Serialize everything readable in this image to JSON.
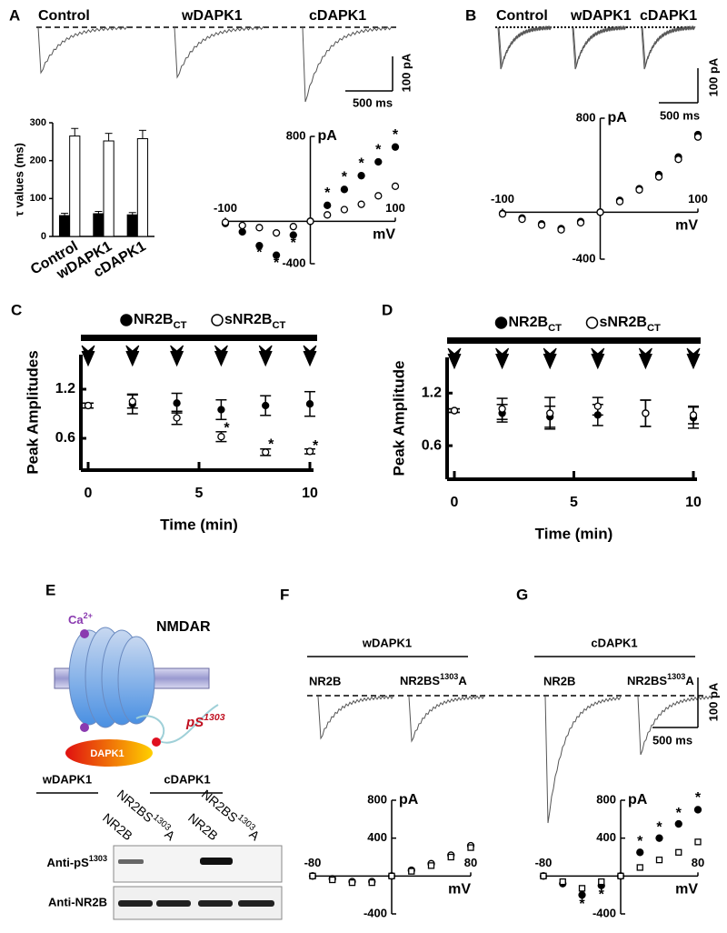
{
  "panel_labels": [
    "A",
    "B",
    "C",
    "D",
    "E",
    "F",
    "G"
  ],
  "traces": {
    "A": {
      "labels": [
        "Control",
        "wDAPK1",
        "cDAPK1"
      ],
      "scale_y": "100 pA",
      "scale_x": "500 ms"
    },
    "B": {
      "labels": [
        "Control",
        "wDAPK1",
        "cDAPK1"
      ],
      "scale_y": "100 pA",
      "scale_x": "500 ms"
    },
    "F": {
      "group": "wDAPK1",
      "labels": [
        "NR2B",
        {
          "before": "NR2BS",
          "sup": "1303",
          "after": "A"
        }
      ]
    },
    "G": {
      "group": "cDAPK1",
      "labels": [
        "NR2B",
        {
          "before": "NR2BS",
          "sup": "1303",
          "after": "A"
        }
      ],
      "scale_y": "100 pA",
      "scale_x": "500 ms"
    }
  },
  "diagram": {
    "ion": {
      "before": "Ca",
      "sup": "2+"
    },
    "receptor": "NMDAR",
    "site": {
      "before": "pS",
      "sup": "1303"
    },
    "kinase": "DAPK1"
  },
  "blot": {
    "groups": [
      "wDAPK1",
      "cDAPK1"
    ],
    "lanes": [
      "NR2B",
      {
        "before": "NR2BS",
        "sup": "1303",
        "after": "A"
      },
      "NR2B",
      {
        "before": "NR2BS",
        "sup": "1303",
        "after": "A"
      }
    ],
    "rows": [
      {
        "before": "Anti-pS",
        "sup": "1303"
      },
      "Anti-NR2B"
    ]
  },
  "chart_data": [
    {
      "type": "bar",
      "ylabel": "τ values (ms)",
      "categories": [
        "Control",
        "wDAPK1",
        "cDAPK1"
      ],
      "series": [
        {
          "color": "#000000",
          "values": [
            55,
            60,
            57
          ],
          "errors": [
            6,
            6,
            6
          ]
        },
        {
          "color": "#ffffff",
          "values": [
            265,
            252,
            258
          ],
          "errors": [
            20,
            20,
            22
          ]
        }
      ],
      "ylim": [
        0,
        300
      ],
      "yticks": [
        0,
        100,
        200,
        300
      ]
    },
    {
      "type": "line",
      "axes_cross": true,
      "xlabel": "mV",
      "ylabel": "pA",
      "x": [
        -100,
        -80,
        -60,
        -40,
        -20,
        0,
        20,
        40,
        60,
        80,
        100
      ],
      "series": [
        {
          "marker": "circle",
          "fill": "#000000",
          "values": [
            -20,
            -100,
            -230,
            -320,
            -130,
            0,
            150,
            300,
            430,
            560,
            700
          ]
        },
        {
          "marker": "circle",
          "fill": "#ffffff",
          "values": [
            -10,
            -40,
            -60,
            -110,
            -50,
            0,
            60,
            110,
            160,
            240,
            330
          ]
        }
      ],
      "xlim": [
        -100,
        100
      ],
      "ylim": [
        -400,
        800
      ],
      "xticks": [
        -100,
        100
      ],
      "yticks": [
        800,
        -400
      ],
      "annotations": [
        {
          "x": -60,
          "y": -300,
          "text": "*"
        },
        {
          "x": -40,
          "y": -400,
          "text": "*"
        },
        {
          "x": -20,
          "y": -210,
          "text": "*"
        },
        {
          "x": 20,
          "y": 260,
          "text": "*"
        },
        {
          "x": 40,
          "y": 410,
          "text": "*"
        },
        {
          "x": 60,
          "y": 540,
          "text": "*"
        },
        {
          "x": 80,
          "y": 670,
          "text": "*"
        },
        {
          "x": 100,
          "y": 810,
          "text": "*"
        }
      ]
    },
    {
      "type": "line",
      "axes_cross": true,
      "xlabel": "mV",
      "ylabel": "pA",
      "x": [
        -100,
        -80,
        -60,
        -40,
        -20,
        0,
        20,
        40,
        60,
        80,
        100
      ],
      "series": [
        {
          "marker": "circle",
          "fill": "#000000",
          "values": [
            -10,
            -50,
            -100,
            -140,
            -80,
            0,
            100,
            200,
            320,
            470,
            660
          ]
        },
        {
          "marker": "circle",
          "fill": "#ffffff",
          "values": [
            -15,
            -60,
            -110,
            -150,
            -90,
            0,
            90,
            190,
            300,
            450,
            640
          ]
        }
      ],
      "xlim": [
        -100,
        100
      ],
      "ylim": [
        -400,
        800
      ],
      "xticks": [
        -100,
        100
      ],
      "yticks": [
        800,
        -400
      ]
    },
    {
      "type": "line",
      "xlabel": "Time (min)",
      "ylabel": "Peak Amplitudes",
      "x": [
        0,
        2,
        4,
        6,
        8,
        10
      ],
      "series": [
        {
          "name": "NR2B",
          "name_sub": "CT",
          "marker": "circle",
          "fill": "#000000",
          "values": [
            1,
            1.02,
            1.03,
            0.95,
            1.0,
            1.02
          ],
          "errors": [
            0.03,
            0.12,
            0.12,
            0.12,
            0.12,
            0.15
          ]
        },
        {
          "name": "sNR2B",
          "name_sub": "CT",
          "marker": "circle",
          "fill": "#ffffff",
          "values": [
            1,
            1.05,
            0.85,
            0.62,
            0.43,
            0.44
          ],
          "errors": [
            0.03,
            0.08,
            0.08,
            0.06,
            0.04,
            0.03
          ]
        }
      ],
      "connect": false,
      "xlim": [
        0,
        10
      ],
      "ylim": [
        0.3,
        1.4
      ],
      "xticks": [
        0,
        5,
        10
      ],
      "yticks": [
        1.2,
        0.6
      ],
      "annotations": [
        {
          "x": 6.25,
          "y": 0.72,
          "text": "*"
        },
        {
          "x": 8.25,
          "y": 0.52,
          "text": "*"
        },
        {
          "x": 10.25,
          "y": 0.5,
          "text": "*"
        }
      ]
    },
    {
      "type": "line",
      "xlabel": "Time (min)",
      "ylabel": "Peak Amplitude",
      "x": [
        0,
        2,
        4,
        6,
        8,
        10
      ],
      "series": [
        {
          "name": "NR2B",
          "name_sub": "CT",
          "marker": "circle",
          "fill": "#000000",
          "values": [
            1,
            0.97,
            0.93,
            0.95,
            0.97,
            0.92
          ],
          "errors": [
            0.02,
            0.1,
            0.12,
            0.12,
            0.15,
            0.12
          ]
        },
        {
          "name": "sNR2B",
          "name_sub": "CT",
          "marker": "circle",
          "fill": "#ffffff",
          "values": [
            1,
            1.02,
            0.97,
            1.05,
            0.97,
            0.95
          ],
          "errors": [
            0.02,
            0.12,
            0.18,
            0.1,
            0.15,
            0.1
          ]
        }
      ],
      "connect": true,
      "xlim": [
        0,
        10
      ],
      "ylim": [
        0.3,
        1.4
      ],
      "xticks": [
        0,
        5,
        10
      ],
      "yticks": [
        1.2,
        0.6
      ]
    },
    {
      "type": "line",
      "axes_cross": true,
      "xlabel": "mV",
      "ylabel": "pA",
      "x": [
        -80,
        -60,
        -40,
        -20,
        0,
        20,
        40,
        60,
        80
      ],
      "series": [
        {
          "marker": "circle",
          "fill": "#ffffff",
          "values": [
            0,
            -30,
            -60,
            -60,
            0,
            60,
            130,
            220,
            320
          ]
        },
        {
          "marker": "square",
          "fill": "#ffffff",
          "dash": true,
          "values": [
            0,
            -40,
            -70,
            -70,
            0,
            50,
            110,
            200,
            300
          ]
        }
      ],
      "xlim": [
        -80,
        80
      ],
      "ylim": [
        -400,
        800
      ],
      "xticks": [
        -80,
        80
      ],
      "yticks": [
        -400,
        400,
        800
      ]
    },
    {
      "type": "line",
      "axes_cross": true,
      "xlabel": "mV",
      "ylabel": "pA",
      "x": [
        -80,
        -60,
        -40,
        -20,
        0,
        20,
        40,
        60,
        80
      ],
      "series": [
        {
          "marker": "circle",
          "fill": "#000000",
          "values": [
            0,
            -80,
            -200,
            -100,
            0,
            250,
            400,
            550,
            700
          ]
        },
        {
          "marker": "square",
          "fill": "#ffffff",
          "dash": true,
          "values": [
            0,
            -60,
            -130,
            -60,
            0,
            90,
            170,
            250,
            360
          ]
        }
      ],
      "xlim": [
        -80,
        80
      ],
      "ylim": [
        -400,
        800
      ],
      "xticks": [
        -80,
        80
      ],
      "yticks": [
        -400,
        400,
        800
      ],
      "annotations": [
        {
          "x": -40,
          "y": -300,
          "text": "*"
        },
        {
          "x": -20,
          "y": -200,
          "text": "*"
        },
        {
          "x": 20,
          "y": 360,
          "text": "*"
        },
        {
          "x": 40,
          "y": 510,
          "text": "*"
        },
        {
          "x": 60,
          "y": 660,
          "text": "*"
        },
        {
          "x": 80,
          "y": 820,
          "text": "*"
        }
      ]
    }
  ]
}
